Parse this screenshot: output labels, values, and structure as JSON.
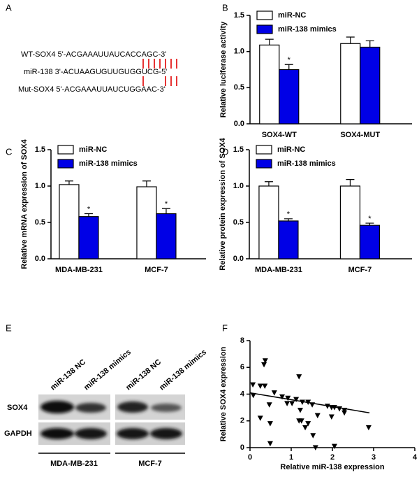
{
  "panel_labels": [
    "A",
    "B",
    "C",
    "D",
    "E",
    "F"
  ],
  "sequences": [
    "WT-SOX4 5'-ACGAAAUUAUCACCAGC-3'",
    "miR-138 3'-ACUAAGUGUUGUGGUCG-5'",
    "Mut-SOX4 5'-ACGAAAUUAUCUGGAAC-3'"
  ],
  "chart_data": [
    {
      "type": "bar",
      "ylabel": "Relative luciferase activity",
      "categories": [
        "SOX4-WT",
        "SOX4-MUT"
      ],
      "series": [
        {
          "name": "miR-NC",
          "color": "#ffffff",
          "values": [
            1.09,
            1.11
          ],
          "errors": [
            0.08,
            0.09
          ]
        },
        {
          "name": "miR-138 mimics",
          "color": "#0000e6",
          "values": [
            0.75,
            1.06
          ],
          "errors": [
            0.07,
            0.09
          ],
          "significance": [
            "*",
            null
          ]
        }
      ],
      "ylim": [
        0,
        1.5
      ],
      "yticks": [
        {
          "value": 0,
          "label": "0.0"
        },
        0.5,
        {
          "value": 1,
          "label": "1.0"
        },
        1.5
      ],
      "legend": "top-left"
    },
    {
      "type": "bar",
      "ylabel": "Relative mRNA expression of  SOX4",
      "categories": [
        "MDA-MB-231",
        "MCF-7"
      ],
      "series": [
        {
          "name": "miR-NC",
          "color": "#ffffff",
          "values": [
            1.02,
            0.99
          ],
          "errors": [
            0.05,
            0.08
          ]
        },
        {
          "name": "miR-138 mimics",
          "color": "#0000e6",
          "values": [
            0.58,
            0.62
          ],
          "errors": [
            0.04,
            0.07
          ],
          "significance": [
            "*",
            "*"
          ]
        }
      ],
      "ylim": [
        0,
        1.5
      ],
      "yticks": [
        {
          "value": 0,
          "label": "0.0"
        },
        0.5,
        {
          "value": 1,
          "label": "1.0"
        },
        1.5
      ],
      "legend": "top-left"
    },
    {
      "type": "bar",
      "ylabel": "Relative protein expression of  SOX4",
      "categories": [
        "MDA-MB-231",
        "MCF-7"
      ],
      "series": [
        {
          "name": "miR-NC",
          "color": "#ffffff",
          "values": [
            1.0,
            1.0
          ],
          "errors": [
            0.06,
            0.09
          ]
        },
        {
          "name": "miR-138 mimics",
          "color": "#0000e6",
          "values": [
            0.52,
            0.46
          ],
          "errors": [
            0.03,
            0.03
          ],
          "significance": [
            "*",
            "*"
          ]
        }
      ],
      "ylim": [
        0,
        1.5
      ],
      "yticks": [
        {
          "value": 0,
          "label": "0.0"
        },
        0.5,
        {
          "value": 1,
          "label": "1.0"
        },
        1.5
      ],
      "legend": "top-left"
    },
    {
      "type": "scatter",
      "xlabel": "Relative miR-138 expression",
      "ylabel": "Relative SOX4 expression",
      "color": "#000000",
      "x": [
        0.07,
        0.25,
        0.36,
        0.37,
        0.34,
        0.08,
        0.25,
        0.49,
        0.59,
        0.78,
        0.92,
        0.9,
        1.02,
        1.12,
        1.22,
        1.19,
        1.25,
        1.34,
        1.41,
        1.19,
        1.27,
        1.51,
        1.53,
        1.64,
        1.88,
        1.98,
        1.98,
        2.05,
        2.17,
        2.29,
        2.29,
        1.41,
        0.47,
        2.05,
        0.49,
        1.59,
        2.88
      ],
      "y": [
        4.7,
        4.6,
        4.6,
        6.5,
        6.2,
        3.9,
        2.2,
        1.8,
        4.1,
        3.8,
        3.7,
        3.3,
        3.3,
        3.6,
        2.8,
        2.0,
        2.0,
        1.5,
        1.8,
        5.3,
        3.4,
        3.2,
        0.9,
        2.4,
        3.1,
        2.3,
        3.0,
        3.0,
        2.9,
        2.8,
        2.6,
        3.4,
        3.2,
        0.1,
        0.3,
        0.0,
        1.5
      ],
      "fit_line": {
        "x": [
          0,
          2.9
        ],
        "y": [
          4.1,
          2.6
        ]
      },
      "xlim": [
        0,
        4
      ],
      "ylim": [
        0,
        8
      ],
      "xticks": [
        0,
        1,
        2,
        3,
        4
      ],
      "yticks": [
        0,
        2,
        4,
        6,
        8
      ]
    }
  ],
  "blot": {
    "lanes": [
      "miR-138 NC",
      "miR-138 mimics",
      "miR-138 NC",
      "miR-138 mimics"
    ],
    "rows": [
      "SOX4",
      "GAPDH"
    ],
    "groups": [
      "MDA-MB-231",
      "MCF-7"
    ]
  }
}
